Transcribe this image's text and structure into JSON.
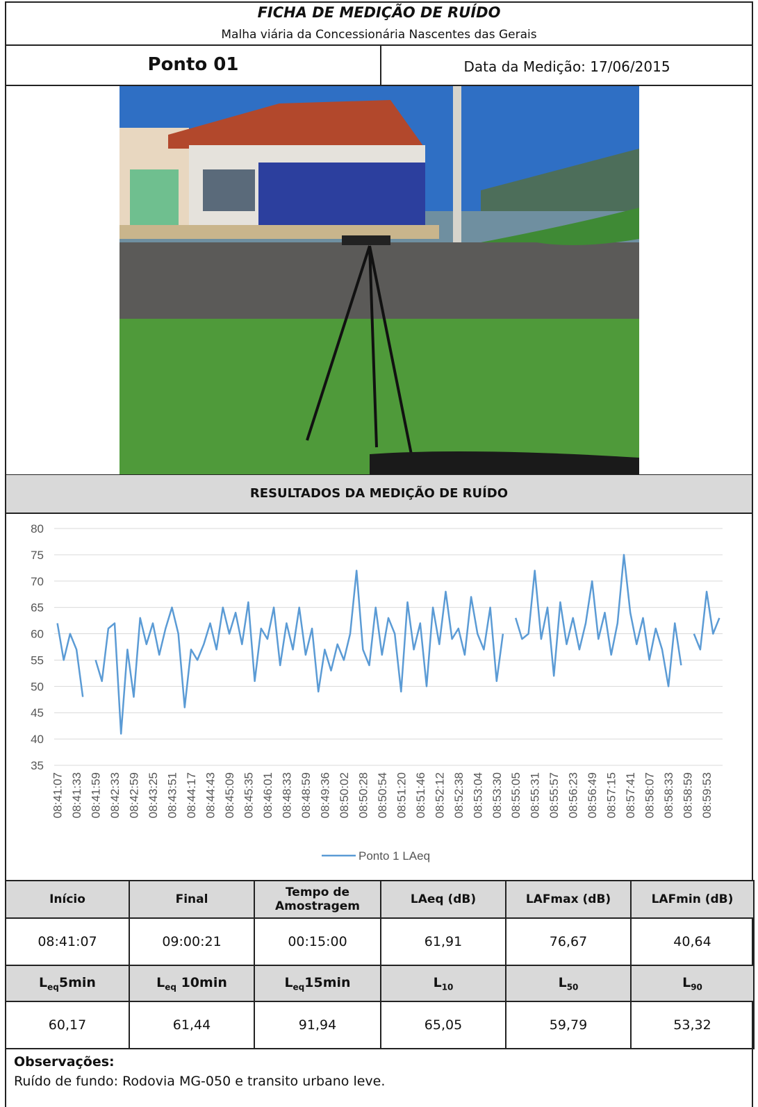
{
  "header": {
    "title": "FICHA DE MEDIÇÃO DE RUÍDO",
    "subtitle": "Malha viária da Concessionária Nascentes das Gerais",
    "point": "Ponto 01",
    "date": "Data da Medição: 17/06/2015"
  },
  "section_title": "RESULTADOS DA MEDIÇÃO DE RUÍDO",
  "chart_data": {
    "type": "line",
    "legend": "bottom",
    "grid": true,
    "categories": [
      "08:41:07",
      null,
      null,
      "08:41:33",
      null,
      null,
      "08:41:59",
      null,
      null,
      "08:42:33",
      null,
      null,
      "08:42:59",
      null,
      null,
      "08:43:25",
      null,
      null,
      "08:43:51",
      null,
      null,
      "08:44:17",
      null,
      null,
      "08:44:43",
      null,
      null,
      "08:45:09",
      null,
      null,
      "08:45:35",
      null,
      null,
      "08:46:01",
      null,
      null,
      "08:48:33",
      null,
      null,
      "08:48:59",
      null,
      null,
      "08:49:36",
      null,
      null,
      "08:50:02",
      null,
      null,
      "08:50:28",
      null,
      null,
      "08:50:54",
      null,
      null,
      "08:51:20",
      null,
      null,
      "08:51:46",
      null,
      null,
      "08:52:12",
      null,
      null,
      "08:52:38",
      null,
      null,
      "08:53:04",
      null,
      null,
      "08:53:30",
      null,
      null,
      "08:55:05",
      null,
      null,
      "08:55:31",
      null,
      null,
      "08:55:57",
      null,
      null,
      "08:56:23",
      null,
      null,
      "08:56:49",
      null,
      null,
      "08:57:15",
      null,
      null,
      "08:57:41",
      null,
      null,
      "08:58:07",
      null,
      null,
      "08:58:33",
      null,
      null,
      "08:58:59",
      null,
      null,
      "08:59:53",
      null,
      null
    ],
    "series": [
      {
        "name": "Ponto 1 LAeq",
        "color": "#5b9bd5",
        "values": [
          62,
          55,
          60,
          57,
          48,
          null,
          55,
          51,
          61,
          62,
          41,
          57,
          48,
          63,
          58,
          62,
          56,
          61,
          65,
          60,
          46,
          57,
          55,
          58,
          62,
          57,
          65,
          60,
          64,
          58,
          66,
          51,
          61,
          59,
          65,
          54,
          62,
          57,
          65,
          56,
          61,
          49,
          57,
          53,
          58,
          55,
          60,
          72,
          57,
          54,
          65,
          56,
          63,
          60,
          49,
          66,
          57,
          62,
          50,
          65,
          58,
          68,
          59,
          61,
          56,
          67,
          60,
          57,
          65,
          51,
          60,
          null,
          63,
          59,
          60,
          72,
          59,
          65,
          52,
          66,
          58,
          63,
          57,
          62,
          70,
          59,
          64,
          56,
          62,
          75,
          64,
          58,
          63,
          55,
          61,
          57,
          50,
          62,
          54,
          null,
          60,
          57,
          68,
          60,
          63
        ]
      }
    ],
    "ylim": [
      35,
      80
    ],
    "yticks": [
      35,
      40,
      45,
      50,
      55,
      60,
      65,
      70,
      75,
      80
    ]
  },
  "table": {
    "header1": [
      "Início",
      "Final",
      "Tempo de Amostragem",
      "LAeq (dB)",
      "LAFmax (dB)",
      "LAFmin (dB)"
    ],
    "row1": [
      "08:41:07",
      "09:00:21",
      "00:15:00",
      "61,91",
      "76,67",
      "40,64"
    ],
    "header2": [
      {
        "base": "L",
        "sub": "eq",
        "suffix": "5min"
      },
      {
        "base": "L",
        "sub": "eq",
        "suffix": " 10min"
      },
      {
        "base": "L",
        "sub": "eq",
        "suffix": "15min"
      },
      {
        "base": "L",
        "sub": "10"
      },
      {
        "base": "L",
        "sub": "50"
      },
      {
        "base": "L",
        "sub": "90"
      }
    ],
    "row2": [
      "60,17",
      "61,44",
      "91,94",
      "65,05",
      "59,79",
      "53,32"
    ]
  },
  "observations": {
    "label": "Observações:",
    "text": "Ruído de fundo: Rodovia MG-050 e transito urbano leve."
  }
}
